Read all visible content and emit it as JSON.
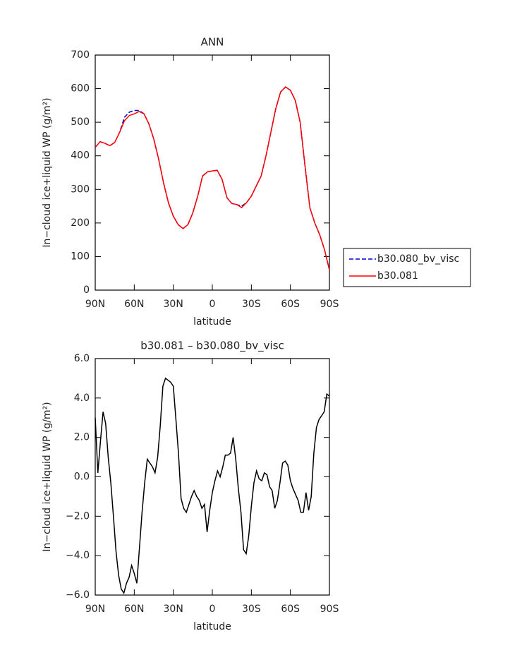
{
  "chart_data": [
    {
      "type": "line",
      "title": "ANN",
      "xlabel": "latitude",
      "ylabel": "In−cloud ice+liquid WP (g/m²)",
      "x": [
        90,
        86.25,
        82.5,
        78.75,
        75,
        71.25,
        67.5,
        63.75,
        60,
        56.25,
        52.5,
        48.75,
        45,
        41.25,
        37.5,
        33.75,
        30,
        26.25,
        22.5,
        18.75,
        15,
        11.25,
        7.5,
        3.75,
        0,
        -3.75,
        -7.5,
        -11.25,
        -15,
        -18.75,
        -22.5,
        -26.25,
        -30,
        -33.75,
        -37.5,
        -41.25,
        -45,
        -48.75,
        -52.5,
        -56.25,
        -60,
        -63.75,
        -67.5,
        -71.25,
        -75,
        -78.75,
        -82.5,
        -86.25,
        -90
      ],
      "series": [
        {
          "name": "b30.080_bv_visc",
          "color": "#0000cc",
          "linestyle": "dashed",
          "values": [
            425,
            442,
            437,
            430,
            440,
            470,
            515,
            530,
            535,
            535,
            525,
            495,
            450,
            390,
            320,
            260,
            220,
            195,
            183,
            195,
            230,
            280,
            340,
            352,
            355,
            357,
            330,
            275,
            258,
            255,
            250,
            260,
            280,
            310,
            340,
            400,
            470,
            540,
            590,
            605,
            595,
            565,
            500,
            370,
            245,
            200,
            165,
            120,
            60
          ]
        },
        {
          "name": "b30.081",
          "color": "#ff0000",
          "linestyle": "solid",
          "values": [
            425,
            442,
            437,
            430,
            440,
            470,
            505,
            520,
            525,
            532,
            525,
            495,
            450,
            390,
            320,
            260,
            220,
            195,
            183,
            195,
            230,
            280,
            340,
            352,
            355,
            357,
            330,
            275,
            258,
            255,
            246,
            260,
            280,
            310,
            340,
            400,
            470,
            540,
            590,
            605,
            595,
            565,
            500,
            370,
            245,
            200,
            165,
            120,
            60
          ]
        }
      ],
      "xlim": [
        90,
        -90
      ],
      "xticks": [
        {
          "value": 90,
          "label": "90N"
        },
        {
          "value": 60,
          "label": "60N"
        },
        {
          "value": 30,
          "label": "30N"
        },
        0,
        {
          "value": -30,
          "label": "30S"
        },
        {
          "value": -60,
          "label": "60S"
        },
        {
          "value": -90,
          "label": "90S"
        }
      ],
      "ylim": [
        0,
        700
      ],
      "yticks": [
        0,
        100,
        200,
        300,
        400,
        500,
        600,
        700
      ],
      "legend": "right",
      "grid": false
    },
    {
      "type": "line",
      "title": "b30.081 – b30.080_bv_visc",
      "xlabel": "latitude",
      "ylabel": "In−cloud ice+liquid WP (g/m²)",
      "x": [
        90,
        88,
        86,
        84,
        82,
        80,
        78,
        76,
        74,
        72,
        70,
        68,
        66,
        64,
        62,
        60,
        58,
        56,
        54,
        52,
        50,
        48,
        46,
        44,
        42,
        40,
        38,
        36,
        34,
        32,
        30,
        28,
        26,
        24,
        22,
        20,
        18,
        16,
        14,
        12,
        10,
        8,
        6,
        4,
        2,
        0,
        -2,
        -4,
        -6,
        -8,
        -10,
        -12,
        -14,
        -16,
        -18,
        -20,
        -22,
        -24,
        -26,
        -28,
        -30,
        -32,
        -34,
        -36,
        -38,
        -40,
        -42,
        -44,
        -46,
        -48,
        -50,
        -52,
        -54,
        -56,
        -58,
        -60,
        -62,
        -64,
        -66,
        -68,
        -70,
        -72,
        -74,
        -76,
        -78,
        -80,
        -82,
        -84,
        -86,
        -88,
        -90
      ],
      "values": [
        3.0,
        0.2,
        1.8,
        3.3,
        2.7,
        1.0,
        -0.3,
        -2.0,
        -3.8,
        -5.0,
        -5.7,
        -5.9,
        -5.4,
        -5.1,
        -4.5,
        -4.9,
        -5.4,
        -3.6,
        -1.8,
        -0.3,
        0.9,
        0.7,
        0.5,
        0.2,
        1.0,
        2.6,
        4.6,
        5.0,
        4.9,
        4.8,
        4.6,
        2.9,
        1.2,
        -1.1,
        -1.6,
        -1.8,
        -1.4,
        -1.0,
        -0.7,
        -1.0,
        -1.2,
        -1.6,
        -1.4,
        -2.8,
        -1.7,
        -0.8,
        -0.2,
        0.3,
        0.0,
        0.5,
        1.1,
        1.1,
        1.2,
        2.0,
        0.9,
        -0.6,
        -1.8,
        -3.7,
        -3.9,
        -3.0,
        -1.5,
        -0.3,
        0.3,
        -0.1,
        -0.2,
        0.2,
        0.1,
        -0.5,
        -0.7,
        -1.6,
        -1.2,
        -0.3,
        0.7,
        0.8,
        0.6,
        -0.2,
        -0.6,
        -0.9,
        -1.2,
        -1.8,
        -1.8,
        -0.8,
        -1.7,
        -1.0,
        1.2,
        2.5,
        2.9,
        3.1,
        3.3,
        4.2,
        4.1
      ],
      "color": "#000000",
      "xlim": [
        90,
        -90
      ],
      "xticks": [
        {
          "value": 90,
          "label": "90N"
        },
        {
          "value": 60,
          "label": "60N"
        },
        {
          "value": 30,
          "label": "30N"
        },
        0,
        {
          "value": -30,
          "label": "30S"
        },
        {
          "value": -60,
          "label": "60S"
        },
        {
          "value": -90,
          "label": "90S"
        }
      ],
      "ylim": [
        -6,
        6
      ],
      "yticks": [
        {
          "value": -6,
          "label": "−6.0"
        },
        {
          "value": -4,
          "label": "−4.0"
        },
        {
          "value": -2,
          "label": "−2.0"
        },
        {
          "value": 0,
          "label": "0.0"
        },
        {
          "value": 2,
          "label": "2.0"
        },
        {
          "value": 4,
          "label": "4.0"
        },
        {
          "value": 6,
          "label": "6.0"
        }
      ],
      "grid": false
    }
  ]
}
